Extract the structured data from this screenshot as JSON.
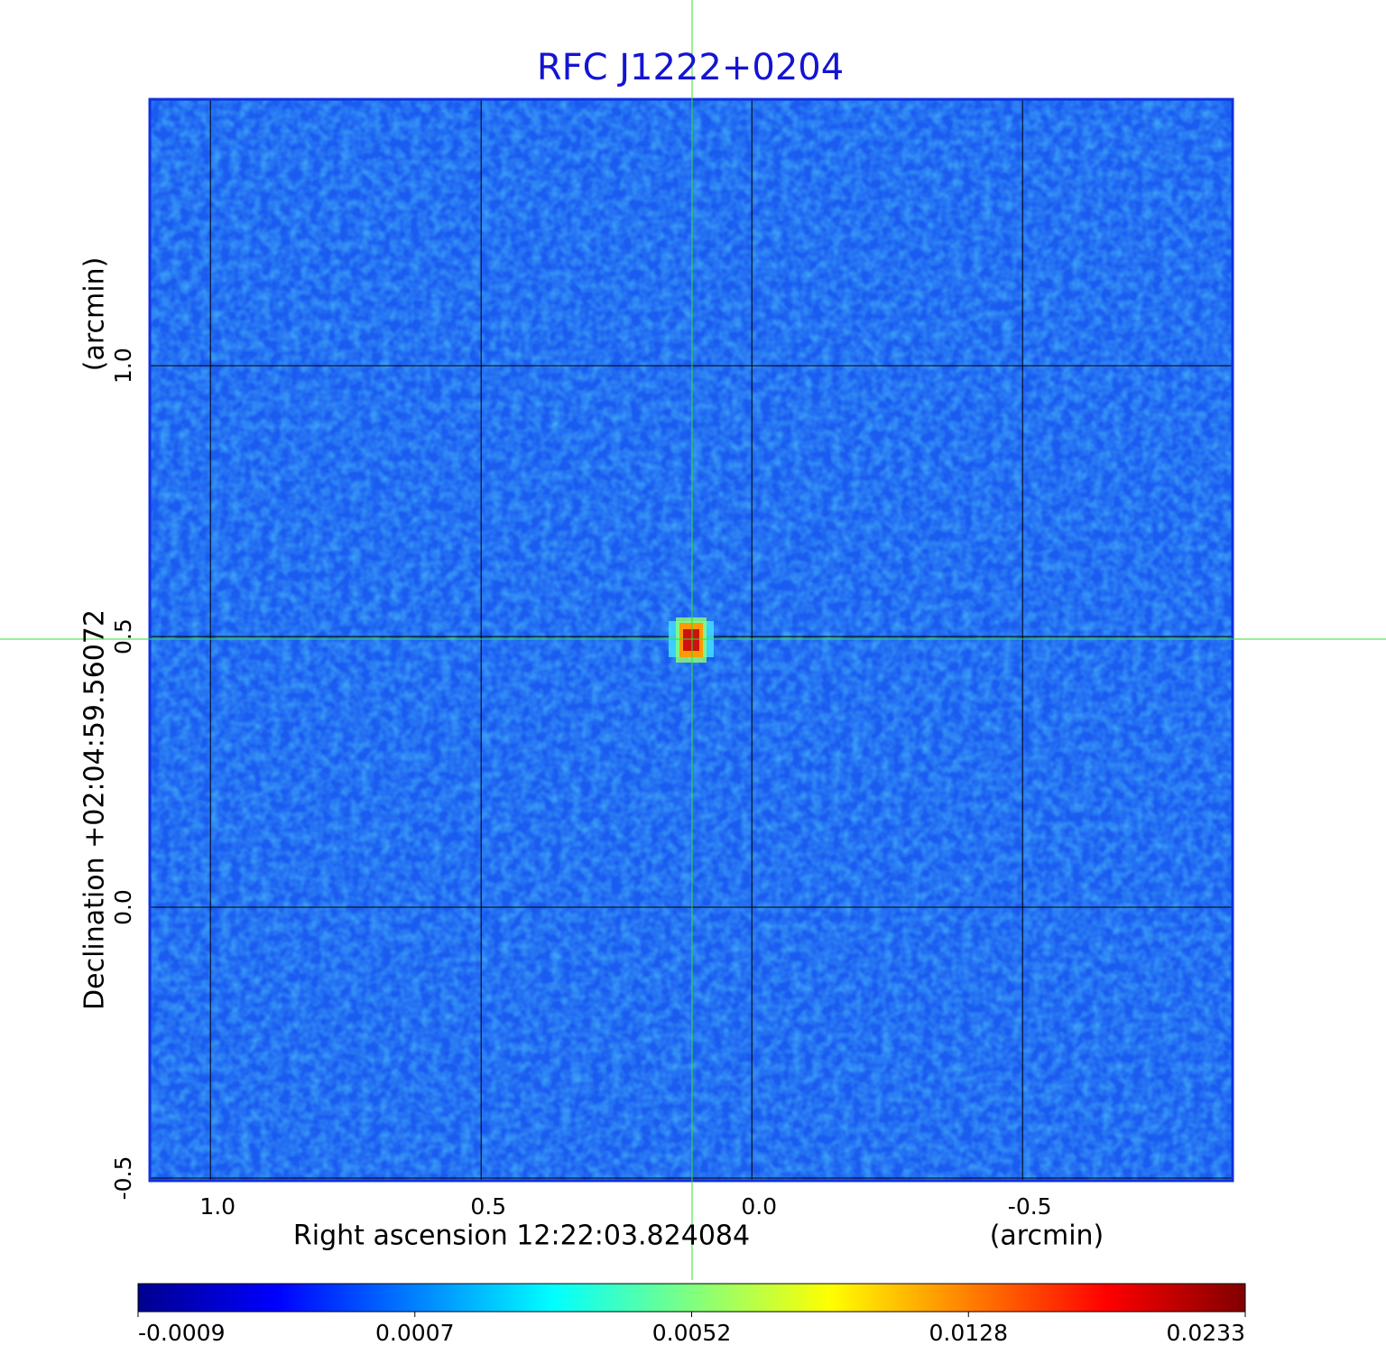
{
  "chart_data": {
    "type": "image",
    "title": "RFC J1222+0204",
    "x_label": "Right ascension  12:22:03.824084",
    "x_unit": "(arcmin)",
    "y_label": "Declination  +02:04:59.56072",
    "y_unit": "(arcmin)",
    "xlim": [
      1.112,
      -0.888
    ],
    "ylim": [
      -0.505,
      1.492
    ],
    "xticks": [
      {
        "value": 1,
        "label": "1.0"
      },
      0.5,
      {
        "value": 0,
        "label": "0.0"
      },
      -0.5
    ],
    "yticks": [
      {
        "value": 1,
        "label": "1.0"
      },
      0.5,
      {
        "value": 0,
        "label": "0.0"
      },
      -0.5
    ],
    "grid": true,
    "colorbar": {
      "ticks": [
        -0.0009,
        0.0007,
        0.0052,
        0.0128,
        0.0233
      ],
      "colors": [
        "#00008f",
        "#0000ff",
        "#0080ff",
        "#00ffff",
        "#80ff80",
        "#ffff00",
        "#ff8000",
        "#ff0000",
        "#800000"
      ]
    }
  }
}
